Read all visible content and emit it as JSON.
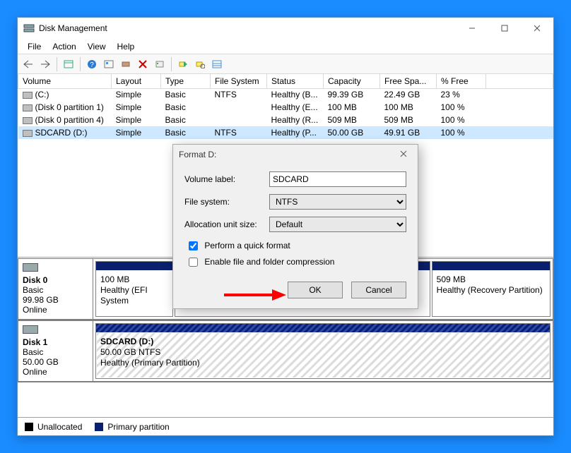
{
  "window": {
    "title": "Disk Management",
    "menus": [
      "File",
      "Action",
      "View",
      "Help"
    ]
  },
  "columns": [
    "Volume",
    "Layout",
    "Type",
    "File System",
    "Status",
    "Capacity",
    "Free Spa...",
    "% Free"
  ],
  "volumes": [
    {
      "name": "(C:)",
      "layout": "Simple",
      "type": "Basic",
      "fs": "NTFS",
      "status": "Healthy (B...",
      "capacity": "99.39 GB",
      "free": "22.49 GB",
      "pct": "23 %",
      "selected": false
    },
    {
      "name": "(Disk 0 partition 1)",
      "layout": "Simple",
      "type": "Basic",
      "fs": "",
      "status": "Healthy (E...",
      "capacity": "100 MB",
      "free": "100 MB",
      "pct": "100 %",
      "selected": false
    },
    {
      "name": "(Disk 0 partition 4)",
      "layout": "Simple",
      "type": "Basic",
      "fs": "",
      "status": "Healthy (R...",
      "capacity": "509 MB",
      "free": "509 MB",
      "pct": "100 %",
      "selected": false
    },
    {
      "name": "SDCARD (D:)",
      "layout": "Simple",
      "type": "Basic",
      "fs": "NTFS",
      "status": "Healthy (P...",
      "capacity": "50.00 GB",
      "free": "49.91 GB",
      "pct": "100 %",
      "selected": true
    }
  ],
  "disks": [
    {
      "name": "Disk 0",
      "type": "Basic",
      "size": "99.98 GB",
      "status": "Online",
      "parts": [
        {
          "title": "",
          "line1": "100 MB",
          "line2": "Healthy (EFI System",
          "flex": 1,
          "hatched": false
        },
        {
          "title": "",
          "line1": "",
          "line2": "",
          "flex": 3.6,
          "hatched": false,
          "hidden_by_dialog": true
        },
        {
          "title": "",
          "line1": "509 MB",
          "line2": "Healthy (Recovery Partition)",
          "flex": 1.6,
          "hatched": false
        }
      ]
    },
    {
      "name": "Disk 1",
      "type": "Basic",
      "size": "50.00 GB",
      "status": "Online",
      "parts": [
        {
          "title": "SDCARD  (D:)",
          "line1": "50.00 GB NTFS",
          "line2": "Healthy (Primary Partition)",
          "flex": 1,
          "hatched": true
        }
      ]
    }
  ],
  "legend": {
    "unalloc": "Unallocated",
    "primary": "Primary partition"
  },
  "dialog": {
    "title": "Format D:",
    "labels": {
      "vol": "Volume label:",
      "fs": "File system:",
      "au": "Allocation unit size:"
    },
    "values": {
      "vol": "SDCARD",
      "fs": "NTFS",
      "au": "Default"
    },
    "checks": {
      "quick": "Perform a quick format",
      "compress": "Enable file and folder compression"
    },
    "check_state": {
      "quick": true,
      "compress": false
    },
    "buttons": {
      "ok": "OK",
      "cancel": "Cancel"
    }
  },
  "arrow": {
    "color": "#ff0000"
  },
  "colors": {
    "desktop": "#1a8cff",
    "stripe": "#0a1f6e"
  }
}
